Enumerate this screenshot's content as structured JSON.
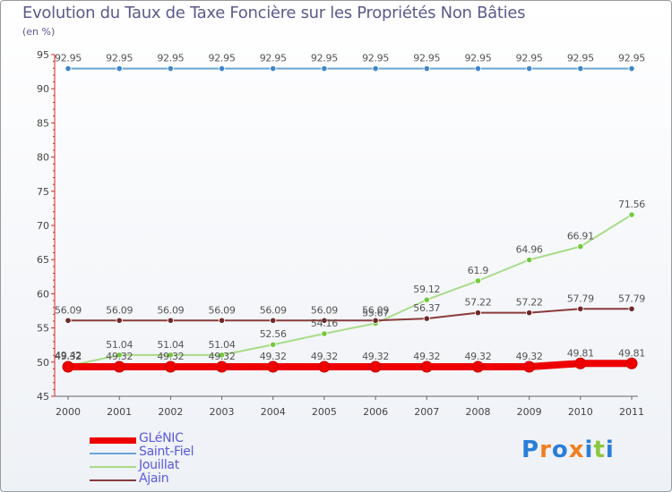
{
  "header": {
    "title": "Evolution du Taux de Taxe Foncière sur les Propriétés Non Bâties",
    "subtitle": "(en %)"
  },
  "brand": {
    "name": "Proxiti",
    "letters": [
      {
        "char": "P",
        "color": "#2a7ed8"
      },
      {
        "char": "r",
        "color": "#f08020"
      },
      {
        "char": "o",
        "color": "#2a7ed8"
      },
      {
        "char": "x",
        "color": "#f08020"
      },
      {
        "char": "i",
        "color": "#2a7ed8"
      },
      {
        "char": "t",
        "color": "#8cc83c"
      },
      {
        "char": "i",
        "color": "#2a7ed8"
      }
    ]
  },
  "chart_data": {
    "type": "line",
    "title": "Evolution du Taux de Taxe Foncière sur les Propriétés Non Bâties",
    "ylabel": "(en %)",
    "xlabel": "",
    "ylim": [
      45,
      95
    ],
    "yticks": [
      45,
      50,
      55,
      60,
      65,
      70,
      75,
      80,
      85,
      90,
      95
    ],
    "grid": false,
    "legend": "bottom-left",
    "x": [
      "2000",
      "2001",
      "2002",
      "2003",
      "2004",
      "2005",
      "2006",
      "2007",
      "2008",
      "2009",
      "2010",
      "2011"
    ],
    "series": [
      {
        "name": "Saint-Fiel",
        "color": "#6aa6d6",
        "point_color": "#3f87c8",
        "values": [
          92.95,
          92.95,
          92.95,
          92.95,
          92.95,
          92.95,
          92.95,
          92.95,
          92.95,
          92.95,
          92.95,
          92.95
        ],
        "labels": [
          "92.95",
          "92.95",
          "92.95",
          "92.95",
          "92.95",
          "92.95",
          "92.95",
          "92.95",
          "92.95",
          "92.95",
          "92.95",
          "92.95"
        ]
      },
      {
        "name": "Jouillat",
        "color": "#a8dc88",
        "point_color": "#74c83c",
        "values": [
          49.42,
          51.04,
          51.04,
          51.04,
          52.56,
          54.16,
          55.67,
          59.12,
          61.9,
          64.96,
          66.91,
          71.56
        ],
        "labels": [
          "49.42",
          "51.04",
          "51.04",
          "51.04",
          "52.56",
          "54.16",
          "55.67",
          "59.12",
          "61.9",
          "64.96",
          "66.91",
          "71.56"
        ]
      },
      {
        "name": "Ajain",
        "color": "#8a3a3a",
        "point_color": "#702828",
        "values": [
          56.09,
          56.09,
          56.09,
          56.09,
          56.09,
          56.09,
          56.09,
          56.37,
          57.22,
          57.22,
          57.79,
          57.79
        ],
        "labels": [
          "56.09",
          "56.09",
          "56.09",
          "56.09",
          "56.09",
          "56.09",
          "56.09",
          "56.37",
          "57.22",
          "57.22",
          "57.79",
          "57.79"
        ]
      },
      {
        "name": "GLéNIC",
        "color": "#ee0000",
        "point_color": "#ee0000",
        "values": [
          49.32,
          49.32,
          49.32,
          49.32,
          49.32,
          49.32,
          49.32,
          49.32,
          49.32,
          49.32,
          49.81,
          49.81
        ],
        "labels": [
          "49.32",
          "49.32",
          "49.32",
          "49.32",
          "49.32",
          "49.32",
          "49.32",
          "49.32",
          "49.32",
          "49.32",
          "49.81",
          "49.81"
        ]
      }
    ],
    "legend_items": [
      {
        "name": "GLéNIC",
        "color": "#ee0000",
        "weight": "thick"
      },
      {
        "name": "Saint-Fiel",
        "color": "#6aa6d6",
        "weight": "thin"
      },
      {
        "name": "Jouillat",
        "color": "#a8dc88",
        "weight": "thin"
      },
      {
        "name": "Ajain",
        "color": "#8a3a3a",
        "weight": "thin"
      }
    ]
  }
}
